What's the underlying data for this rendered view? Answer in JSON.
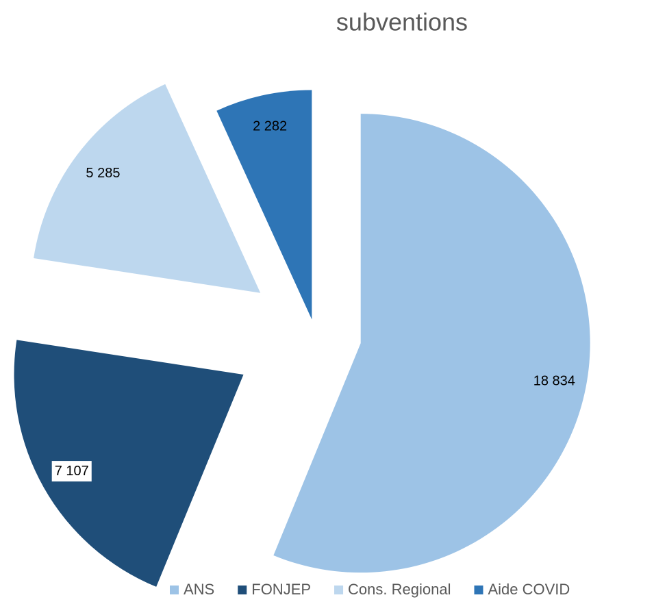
{
  "chart_data": {
    "type": "pie",
    "title": "subventions",
    "categories": [
      "ANS",
      "FONJEP",
      "Cons. Regional",
      "Aide COVID"
    ],
    "values": [
      18834,
      7107,
      5285,
      2282
    ],
    "value_labels": [
      "18 834",
      "7 107",
      "5 285",
      "2 282"
    ],
    "colors": [
      "#9dc3e6",
      "#1f4e79",
      "#bdd7ee",
      "#2e75b6"
    ],
    "legend": "bottom"
  }
}
